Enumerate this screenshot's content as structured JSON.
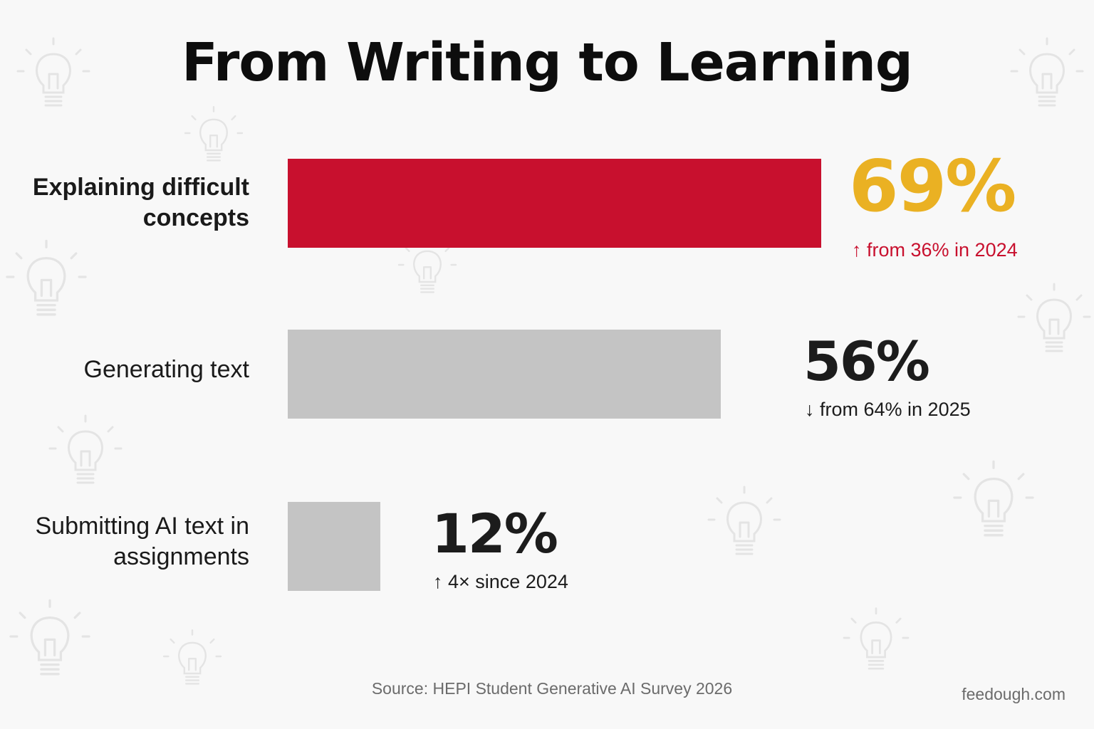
{
  "chart_data": {
    "type": "bar",
    "orientation": "horizontal",
    "title": "From Writing to Learning",
    "categories": [
      "Explaining difficult concepts",
      "Generating text",
      "Submitting AI text in assignments"
    ],
    "values": [
      69,
      56,
      12
    ],
    "value_labels": [
      "69%",
      "56%",
      "12%"
    ],
    "changes": [
      "↑ from 36% in 2024",
      "↓ from 64% in 2025",
      "↑ 4× since 2024"
    ],
    "xlim": [
      0,
      69
    ],
    "grid": false,
    "source": "Source: HEPI Student Generative AI Survey 2026",
    "colors": {
      "highlight_bar": "#c8102e",
      "bar": "#c4c4c4",
      "highlight_value": "#eab123",
      "value": "#1c1c1c",
      "change_up_highlight": "#c8102e",
      "change": "#1c1c1c"
    }
  },
  "brand": "feedough.com",
  "icons": {
    "background": "lightbulb-icon"
  }
}
